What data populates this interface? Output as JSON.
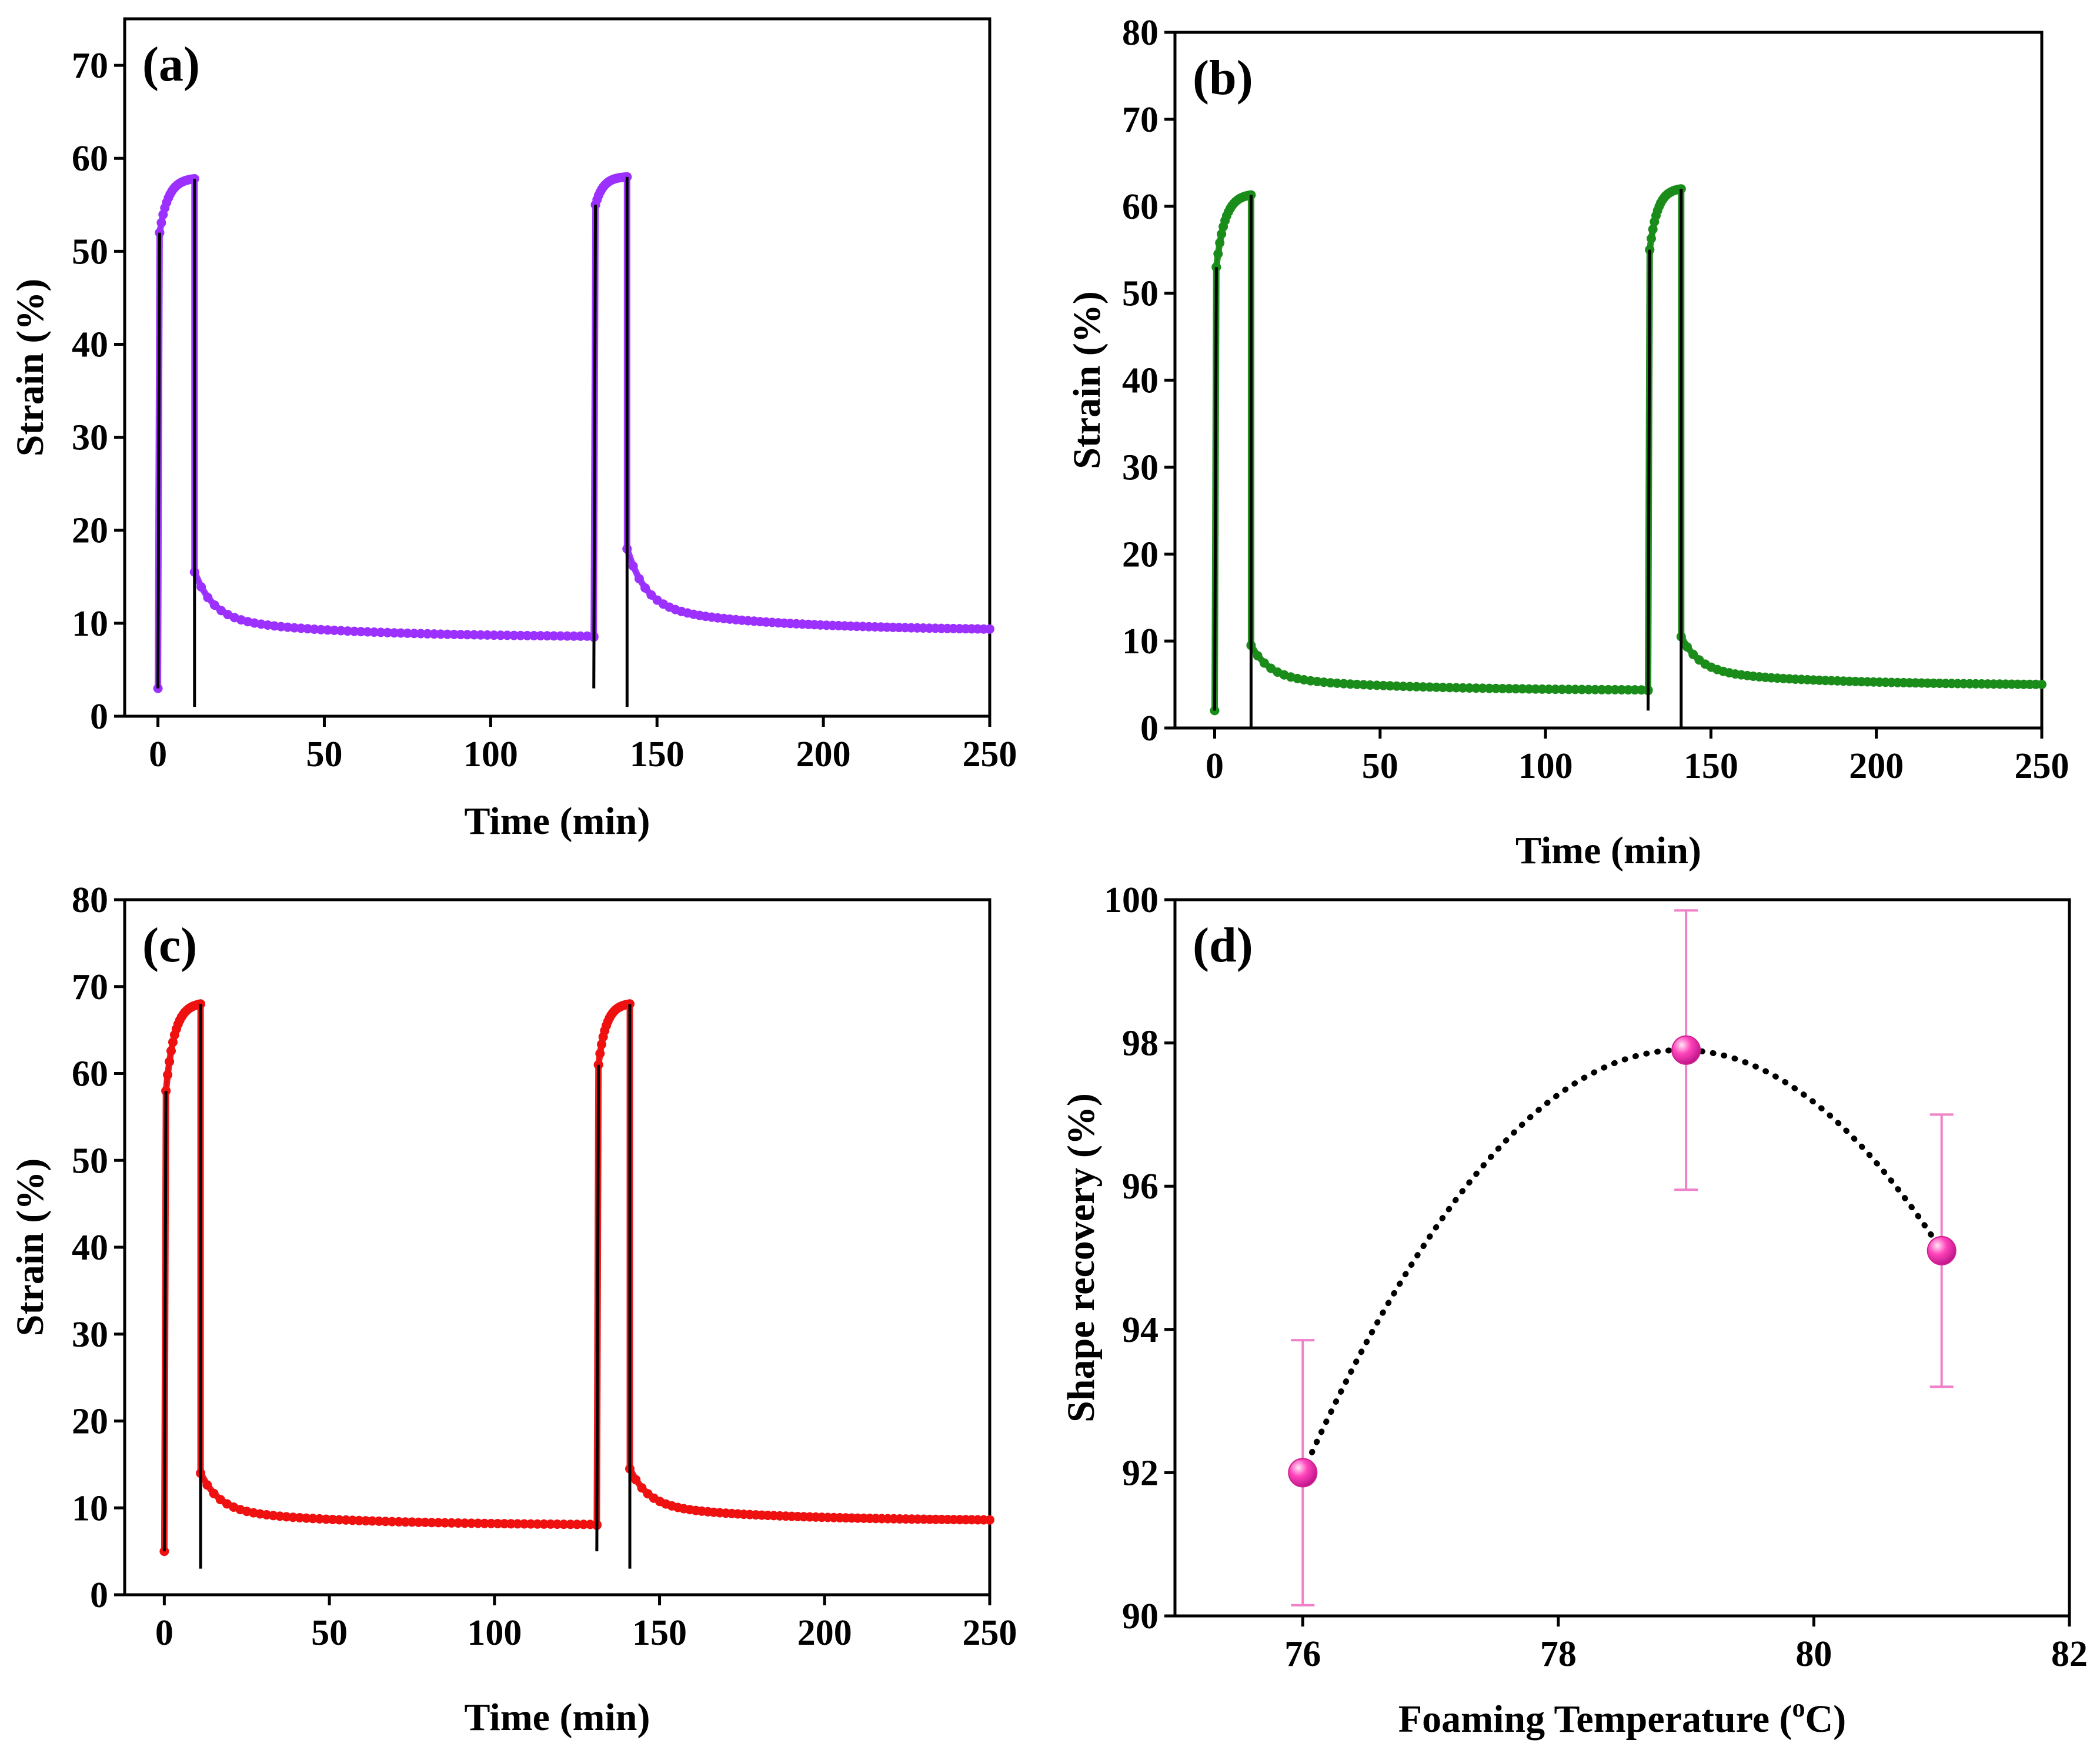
{
  "figure": {
    "panels": [
      "(a)",
      "(b)",
      "(c)",
      "(d)"
    ]
  },
  "chart_data": [
    {
      "id": "a",
      "type": "line",
      "panel_label": "(a)",
      "xlabel": "Time (min)",
      "ylabel": "Strain (%)",
      "xlim": [
        -10,
        250
      ],
      "ylim": [
        0,
        75
      ],
      "xticks": [
        0,
        50,
        100,
        150,
        200,
        250
      ],
      "yticks": [
        0,
        10,
        20,
        30,
        40,
        50,
        60,
        70
      ],
      "color": "#9b30ff",
      "baseline": 3,
      "cycles": [
        {
          "t_start": 0,
          "t_unload": 11,
          "peak_start": 52,
          "peak_end": 57.8,
          "recovery_start": 15.5,
          "recovery_end": 8.5,
          "t_end": 131
        },
        {
          "t_start": 131,
          "t_unload": 141,
          "peak_start": 55,
          "peak_end": 58.0,
          "recovery_start": 18,
          "recovery_end": 9.2,
          "t_end": 250
        }
      ]
    },
    {
      "id": "b",
      "type": "line",
      "panel_label": "(b)",
      "xlabel": "Time (min)",
      "ylabel": "Strain (%)",
      "xlim": [
        -12,
        250
      ],
      "ylim": [
        0,
        80
      ],
      "xticks": [
        0,
        50,
        100,
        150,
        200,
        250
      ],
      "yticks": [
        0,
        10,
        20,
        30,
        40,
        50,
        60,
        70,
        80
      ],
      "color": "#1a8c1a",
      "baseline": 2,
      "cycles": [
        {
          "t_start": 0,
          "t_unload": 11,
          "peak_start": 53,
          "peak_end": 61.3,
          "recovery_start": 9.5,
          "recovery_end": 4.3,
          "t_end": 131
        },
        {
          "t_start": 131,
          "t_unload": 141,
          "peak_start": 55,
          "peak_end": 62.0,
          "recovery_start": 10.5,
          "recovery_end": 4.9,
          "t_end": 250
        }
      ]
    },
    {
      "id": "c",
      "type": "line",
      "panel_label": "(c)",
      "xlabel": "Time (min)",
      "ylabel": "Strain (%)",
      "xlim": [
        -12,
        250
      ],
      "ylim": [
        0,
        80
      ],
      "xticks": [
        0,
        50,
        100,
        150,
        200,
        250
      ],
      "yticks": [
        0,
        10,
        20,
        30,
        40,
        50,
        60,
        70,
        80
      ],
      "color": "#ee1111",
      "baseline": 5,
      "cycles": [
        {
          "t_start": 0,
          "t_unload": 11,
          "peak_start": 58,
          "peak_end": 68.0,
          "recovery_start": 14,
          "recovery_end": 8.0,
          "t_end": 131
        },
        {
          "t_start": 131,
          "t_unload": 141,
          "peak_start": 61,
          "peak_end": 68.0,
          "recovery_start": 14.5,
          "recovery_end": 8.5,
          "t_end": 250
        }
      ]
    },
    {
      "id": "d",
      "type": "scatter",
      "panel_label": "(d)",
      "xlabel": "Foaming Temperature (",
      "xlabel_sup": "o",
      "xlabel_end": "C)",
      "ylabel": "Shape recovery (%)",
      "xlim": [
        75,
        82
      ],
      "ylim": [
        90,
        100
      ],
      "xticks": [
        76,
        78,
        80,
        82
      ],
      "yticks": [
        90,
        92,
        94,
        96,
        98,
        100
      ],
      "color": "#ff44bb",
      "errorbar_color": "#f080c8",
      "points": [
        {
          "x": 76,
          "y": 92.0,
          "err": 1.85
        },
        {
          "x": 79,
          "y": 97.9,
          "err": 1.95
        },
        {
          "x": 81,
          "y": 95.1,
          "err": 1.9
        }
      ],
      "fit": "dotted quadratic through points"
    }
  ]
}
